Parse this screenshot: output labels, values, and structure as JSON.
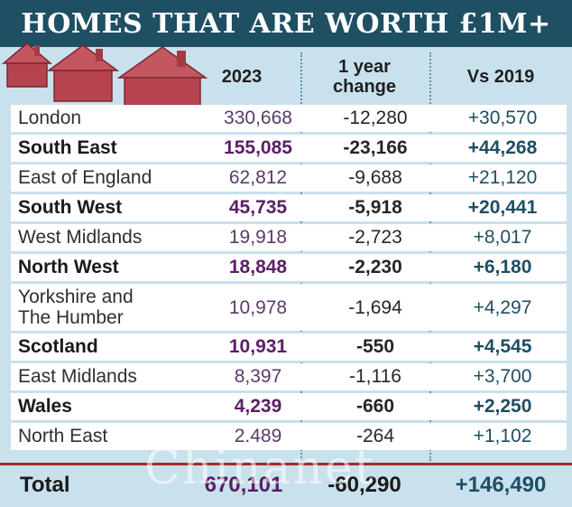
{
  "title": "HOMES THAT ARE WORTH £1M+",
  "headers": {
    "year": "2023",
    "change_line1": "1 year",
    "change_line2": "change",
    "vs": "Vs 2019"
  },
  "chart_data": {
    "type": "table",
    "title": "HOMES THAT ARE WORTH £1M+",
    "columns": [
      "2023",
      "1 year change",
      "Vs 2019"
    ],
    "rows": [
      {
        "region": "London",
        "region_line2": "",
        "v2023": "330,668",
        "change": "-12,280",
        "vs2019": "+30,570",
        "bold": false
      },
      {
        "region": "South East",
        "region_line2": "",
        "v2023": "155,085",
        "change": "-23,166",
        "vs2019": "+44,268",
        "bold": true
      },
      {
        "region": "East of England",
        "region_line2": "",
        "v2023": "62,812",
        "change": "-9,688",
        "vs2019": "+21,120",
        "bold": false
      },
      {
        "region": "South West",
        "region_line2": "",
        "v2023": "45,735",
        "change": "-5,918",
        "vs2019": "+20,441",
        "bold": true
      },
      {
        "region": "West Midlands",
        "region_line2": "",
        "v2023": "19,918",
        "change": "-2,723",
        "vs2019": "+8,017",
        "bold": false
      },
      {
        "region": "North West",
        "region_line2": "",
        "v2023": "18,848",
        "change": "-2,230",
        "vs2019": "+6,180",
        "bold": true
      },
      {
        "region": "Yorkshire and",
        "region_line2": "The Humber",
        "v2023": "10,978",
        "change": "-1,694",
        "vs2019": "+4,297",
        "bold": false
      },
      {
        "region": "Scotland",
        "region_line2": "",
        "v2023": "10,931",
        "change": "-550",
        "vs2019": "+4,545",
        "bold": true
      },
      {
        "region": "East Midlands",
        "region_line2": "",
        "v2023": "8,397",
        "change": "-1,116",
        "vs2019": "+3,700",
        "bold": false
      },
      {
        "region": "Wales",
        "region_line2": "",
        "v2023": "4,239",
        "change": "-660",
        "vs2019": "+2,250",
        "bold": true
      },
      {
        "region": "North East",
        "region_line2": "",
        "v2023": "2.489",
        "change": "-264",
        "vs2019": "+1,102",
        "bold": false
      }
    ],
    "total": {
      "label": "Total",
      "v2023": "670,101",
      "change": "-60,290",
      "vs2019": "+146,490"
    }
  },
  "watermark": "Chinanet",
  "colors": {
    "title_bg": "#1e4f63",
    "panel_bg": "#c9e1ec",
    "house": "#b5444e",
    "total_rule": "#a52a2a"
  }
}
